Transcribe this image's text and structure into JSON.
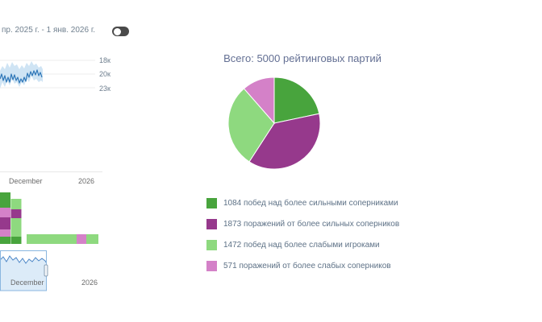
{
  "header": {
    "date_range": "пр. 2025 г. - 1 янв. 2026 г.",
    "toggle_on": false
  },
  "colors": {
    "win_stronger": "#48a43d",
    "loss_stronger": "#96398c",
    "win_weaker": "#8ed97f",
    "loss_weaker": "#d481c8",
    "line": "#2f77b8",
    "band": "#cfe4f4",
    "nav_fill": "#dcebf8",
    "nav_line": "#4f88c7",
    "nav_select": "#8ab6df",
    "axis": "#e7e7e7",
    "tick_text": "#6e7e8e"
  },
  "chart_data": [
    {
      "type": "line",
      "name": "rank-history",
      "y_tick_labels": [
        "18к",
        "20к",
        "23к"
      ],
      "x_tick_labels": [
        "December",
        "2026"
      ],
      "grid": true,
      "series": [
        {
          "name": "rank",
          "points": [
            [
              0,
              26
            ],
            [
              2,
              20
            ],
            [
              4,
              28
            ],
            [
              6,
              22
            ],
            [
              8,
              30
            ],
            [
              10,
              24
            ],
            [
              12,
              30
            ],
            [
              14,
              20
            ],
            [
              16,
              27
            ],
            [
              18,
              21
            ],
            [
              20,
              28
            ],
            [
              22,
              24
            ],
            [
              24,
              31
            ],
            [
              26,
              26
            ],
            [
              28,
              30
            ],
            [
              30,
              24
            ],
            [
              32,
              29
            ],
            [
              34,
              19
            ],
            [
              36,
              24
            ],
            [
              38,
              17
            ],
            [
              40,
              22
            ],
            [
              42,
              16
            ],
            [
              44,
              21
            ],
            [
              46,
              15
            ],
            [
              48,
              22
            ],
            [
              50,
              18
            ],
            [
              52,
              24
            ]
          ]
        }
      ],
      "band_upper": [
        [
          0,
          16
        ],
        [
          3,
          10
        ],
        [
          6,
          14
        ],
        [
          9,
          6
        ],
        [
          12,
          12
        ],
        [
          15,
          5
        ],
        [
          18,
          10
        ],
        [
          21,
          8
        ],
        [
          24,
          14
        ],
        [
          27,
          9
        ],
        [
          30,
          13
        ],
        [
          33,
          6
        ],
        [
          36,
          10
        ],
        [
          39,
          4
        ],
        [
          42,
          9
        ],
        [
          45,
          7
        ],
        [
          48,
          12
        ],
        [
          51,
          10
        ],
        [
          53,
          14
        ]
      ],
      "band_lower": [
        [
          53,
          30
        ],
        [
          51,
          28
        ],
        [
          48,
          30
        ],
        [
          45,
          26
        ],
        [
          42,
          28
        ],
        [
          39,
          22
        ],
        [
          36,
          30
        ],
        [
          33,
          26
        ],
        [
          30,
          34
        ],
        [
          27,
          30
        ],
        [
          24,
          36
        ],
        [
          21,
          30
        ],
        [
          18,
          32
        ],
        [
          15,
          26
        ],
        [
          12,
          34
        ],
        [
          9,
          28
        ],
        [
          6,
          36
        ],
        [
          3,
          30
        ],
        [
          0,
          38
        ]
      ]
    },
    {
      "type": "bar",
      "name": "results-breakdown",
      "stacked": true,
      "x_tick_labels": [
        "December",
        "2026"
      ],
      "rects": [
        {
          "x": 0,
          "y": 3,
          "w": 13,
          "h": 19,
          "color_key": "win_stronger"
        },
        {
          "x": 0,
          "y": 22,
          "w": 13,
          "h": 12,
          "color_key": "loss_weaker"
        },
        {
          "x": 0,
          "y": 34,
          "w": 13,
          "h": 15,
          "color_key": "loss_stronger"
        },
        {
          "x": 0,
          "y": 49,
          "w": 13,
          "h": 9,
          "color_key": "loss_weaker"
        },
        {
          "x": 0,
          "y": 58,
          "w": 13,
          "h": 9,
          "color_key": "win_stronger"
        },
        {
          "x": 13.5,
          "y": 11,
          "w": 13,
          "h": 13,
          "color_key": "win_weaker"
        },
        {
          "x": 13.5,
          "y": 24,
          "w": 13,
          "h": 11,
          "color_key": "loss_stronger"
        },
        {
          "x": 13.5,
          "y": 35,
          "w": 13,
          "h": 23,
          "color_key": "win_weaker"
        },
        {
          "x": 13.5,
          "y": 58,
          "w": 13,
          "h": 9,
          "color_key": "win_stronger"
        },
        {
          "x": 33,
          "y": 55,
          "w": 62,
          "h": 12,
          "color_key": "win_weaker"
        },
        {
          "x": 95,
          "y": 55,
          "w": 12,
          "h": 12,
          "color_key": "loss_weaker"
        },
        {
          "x": 107,
          "y": 55,
          "w": 15,
          "h": 12,
          "color_key": "win_weaker"
        }
      ]
    },
    {
      "type": "area",
      "name": "navigator",
      "x_tick_labels": [
        "December",
        "2026"
      ],
      "points": [
        [
          0,
          12
        ],
        [
          4,
          8
        ],
        [
          8,
          14
        ],
        [
          12,
          7
        ],
        [
          16,
          12
        ],
        [
          20,
          9
        ],
        [
          24,
          15
        ],
        [
          28,
          10
        ],
        [
          32,
          16
        ],
        [
          36,
          11
        ],
        [
          40,
          14
        ],
        [
          44,
          9
        ],
        [
          48,
          13
        ],
        [
          52,
          10
        ],
        [
          56,
          13
        ],
        [
          57,
          15
        ]
      ],
      "selection": {
        "x0": 0,
        "x1": 57
      }
    },
    {
      "type": "pie",
      "title": "Всего: 5000 рейтинговых партий",
      "total": 5000,
      "values": [
        1084,
        1873,
        1472,
        571
      ],
      "labels": [
        "1084 побед над более сильными соперниками",
        "1873 поражений от более сильных соперников",
        "1472 побед над более слабыми игроками",
        "571 поражений от более слабых соперников"
      ],
      "color_keys": [
        "win_stronger",
        "loss_stronger",
        "win_weaker",
        "loss_weaker"
      ],
      "legend_position": "bottom"
    }
  ]
}
